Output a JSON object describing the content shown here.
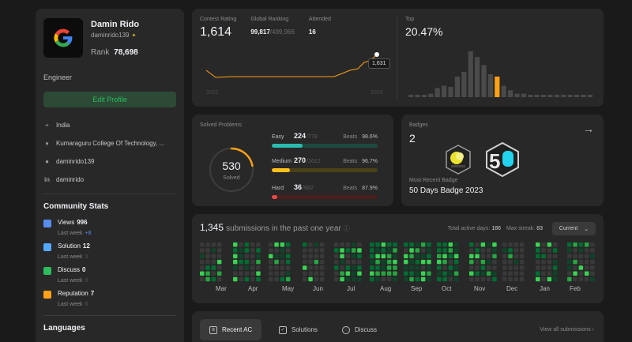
{
  "profile": {
    "name": "Damin Rido",
    "handle": "daminrido139",
    "rank_label": "Rank",
    "rank_value": "78,698",
    "title": "Engineer",
    "edit_label": "Edit Profile",
    "location": "India",
    "school": "Kumaraguru College Of Technology, ...",
    "github": "daminrido139",
    "linkedin": "daminrido"
  },
  "community": {
    "title": "Community Stats",
    "stats": [
      {
        "label": "Views",
        "value": "996",
        "sub_label": "Last week",
        "sub_value": "+8",
        "icon": "eye-icon",
        "color": "#5a8df0"
      },
      {
        "label": "Solution",
        "value": "12",
        "sub_label": "Last week",
        "sub_value": "0",
        "icon": "check-square-icon",
        "color": "#52a9ff"
      },
      {
        "label": "Discuss",
        "value": "0",
        "sub_label": "Last week",
        "sub_value": "0",
        "icon": "chat-icon",
        "color": "#2cbb5d"
      },
      {
        "label": "Reputation",
        "value": "7",
        "sub_label": "Last week",
        "sub_value": "0",
        "icon": "star-icon",
        "color": "#ffa116"
      }
    ]
  },
  "languages_title": "Languages",
  "contest": {
    "rating_label": "Contest Rating",
    "rating": "1,614",
    "global_label": "Global Ranking",
    "global_rank": "99,817",
    "global_total": "/499,966",
    "attended_label": "Attended",
    "attended": "16",
    "tooltip": "1,631",
    "year_start": "2022",
    "year_end": "2024",
    "top_label": "Top",
    "top_value": "20.47%",
    "histogram": [
      2,
      2,
      2,
      3,
      8,
      10,
      9,
      18,
      22,
      40,
      35,
      28,
      20,
      18,
      10,
      6,
      3,
      3,
      2,
      2,
      2,
      2,
      2,
      2,
      2,
      2,
      2,
      2
    ],
    "highlight_index": 13
  },
  "solved": {
    "title": "Solved Problems",
    "total": "530",
    "total_label": "Solved",
    "ring_fraction": 0.22,
    "difficulties": [
      {
        "name": "Easy",
        "count": "224",
        "total": "/778",
        "beats_label": "Beats",
        "beats": "98.6%",
        "fraction": 0.29,
        "color": "#2cbbb0",
        "track": "#1f4a3f"
      },
      {
        "name": "Medium",
        "count": "270",
        "total": "/1612",
        "beats_label": "Beats",
        "beats": "96.7%",
        "fraction": 0.17,
        "color": "#ffc01e",
        "track": "#4a4217"
      },
      {
        "name": "Hard",
        "count": "36",
        "total": "/682",
        "beats_label": "Beats",
        "beats": "87.9%",
        "fraction": 0.05,
        "color": "#ef4743",
        "track": "#4a1e1e"
      }
    ]
  },
  "badges": {
    "title": "Badges",
    "count": "2",
    "recent_label": "Most Recent Badge",
    "recent_name": "50 Days Badge 2023"
  },
  "submissions": {
    "count": "1,345",
    "label": "submissions in the past one year",
    "active_label": "Total active days:",
    "active_days": "186",
    "streak_label": "Max streak:",
    "max_streak": "83",
    "current_label": "Current",
    "months": [
      "Mar",
      "Apr",
      "May",
      "Jun",
      "Jul",
      "Aug",
      "Sep",
      "Oct",
      "Nov",
      "Dec",
      "Jan",
      "Feb"
    ]
  },
  "tabs": {
    "items": [
      {
        "label": "Recent AC",
        "icon": "list-icon",
        "active": true
      },
      {
        "label": "Solutions",
        "icon": "check-square-icon",
        "active": false
      },
      {
        "label": "Discuss",
        "icon": "chat-search-icon",
        "active": false
      }
    ],
    "view_all": "View all submissions"
  }
}
